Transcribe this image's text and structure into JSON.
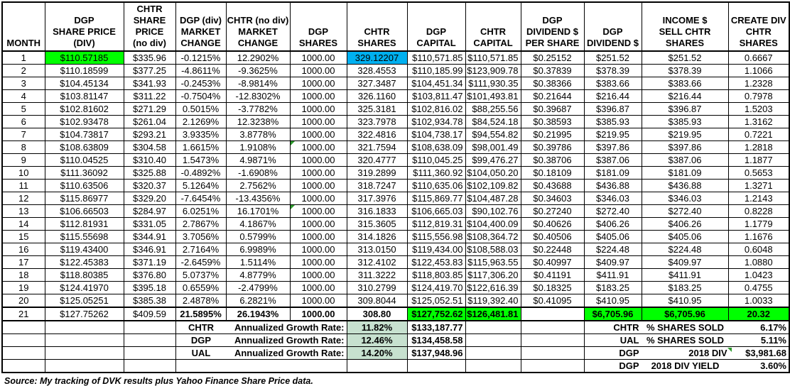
{
  "colors": {
    "highlight_green": "#00ff00",
    "highlight_blue": "#00b0f0",
    "rate_mint": "#c7e1cf",
    "note_flag_green": "#2d9b2d"
  },
  "table": {
    "columns": [
      {
        "id": "month",
        "lines": [
          "MONTH"
        ]
      },
      {
        "id": "dgp_price",
        "lines": [
          "DGP",
          "SHARE PRICE",
          "(DIV)"
        ]
      },
      {
        "id": "chtr_price",
        "lines": [
          "CHTR",
          "SHARE PRICE",
          "(no div)"
        ]
      },
      {
        "id": "dgp_chg",
        "lines": [
          "DGP (div)",
          "MARKET",
          "CHANGE"
        ]
      },
      {
        "id": "chtr_chg",
        "lines": [
          "CHTR (no div)",
          "MARKET",
          "CHANGE"
        ]
      },
      {
        "id": "dgp_shares",
        "lines": [
          "DGP",
          "SHARES"
        ]
      },
      {
        "id": "chtr_shares",
        "lines": [
          "CHTR",
          "SHARES"
        ]
      },
      {
        "id": "dgp_capital",
        "lines": [
          "DGP",
          "CAPITAL"
        ]
      },
      {
        "id": "chtr_capital",
        "lines": [
          "CHTR",
          "CAPITAL"
        ]
      },
      {
        "id": "div_per_share",
        "lines": [
          "DGP",
          "DIVIDEND $",
          "PER SHARE"
        ]
      },
      {
        "id": "dgp_dividend",
        "lines": [
          "DGP",
          "DIVIDEND $"
        ]
      },
      {
        "id": "income_sell",
        "lines": [
          "INCOME $",
          "SELL CHTR",
          "SHARES"
        ]
      },
      {
        "id": "create_div",
        "lines": [
          "CREATE DIV",
          "CHTR",
          "SHARES"
        ]
      }
    ],
    "rows": [
      {
        "month": "1",
        "dgp_price": "$110.57185",
        "chtr_price": "$335.96",
        "dgp_chg": "-0.1215%",
        "chtr_chg": "12.2902%",
        "dgp_shares": "1000.00",
        "chtr_shares": "329.12207",
        "dgp_capital": "$110,571.85",
        "chtr_capital": "$110,571.85",
        "div_per_share": "$0.25152",
        "dgp_dividend": "$251.52",
        "income_sell": "$251.52",
        "create_div": "0.6667"
      },
      {
        "month": "2",
        "dgp_price": "$110.18599",
        "chtr_price": "$377.25",
        "dgp_chg": "-4.8611%",
        "chtr_chg": "-9.3625%",
        "dgp_shares": "1000.00",
        "chtr_shares": "328.4553",
        "dgp_capital": "$110,185.99",
        "chtr_capital": "$123,909.78",
        "div_per_share": "$0.37839",
        "dgp_dividend": "$378.39",
        "income_sell": "$378.39",
        "create_div": "1.1066"
      },
      {
        "month": "3",
        "dgp_price": "$104.45134",
        "chtr_price": "$341.93",
        "dgp_chg": "-0.2453%",
        "chtr_chg": "-8.9814%",
        "dgp_shares": "1000.00",
        "chtr_shares": "327.3487",
        "dgp_capital": "$104,451.34",
        "chtr_capital": "$111,930.35",
        "div_per_share": "$0.38366",
        "dgp_dividend": "$383.66",
        "income_sell": "$383.66",
        "create_div": "1.2328"
      },
      {
        "month": "4",
        "dgp_price": "$103.81147",
        "chtr_price": "$311.22",
        "dgp_chg": "-0.7504%",
        "chtr_chg": "-12.8302%",
        "dgp_shares": "1000.00",
        "chtr_shares": "326.1160",
        "dgp_capital": "$103,811.47",
        "chtr_capital": "$101,493.81",
        "div_per_share": "$0.21644",
        "dgp_dividend": "$216.44",
        "income_sell": "$216.44",
        "create_div": "0.7978"
      },
      {
        "month": "5",
        "dgp_price": "$102.81602",
        "chtr_price": "$271.29",
        "dgp_chg": "0.5015%",
        "chtr_chg": "-3.7782%",
        "dgp_shares": "1000.00",
        "chtr_shares": "325.3181",
        "dgp_capital": "$102,816.02",
        "chtr_capital": "$88,255.56",
        "div_per_share": "$0.39687",
        "dgp_dividend": "$396.87",
        "income_sell": "$396.87",
        "create_div": "1.5203"
      },
      {
        "month": "6",
        "dgp_price": "$102.93478",
        "chtr_price": "$261.04",
        "dgp_chg": "2.1269%",
        "chtr_chg": "12.3238%",
        "dgp_shares": "1000.00",
        "chtr_shares": "323.7978",
        "dgp_capital": "$102,934.78",
        "chtr_capital": "$84,524.18",
        "div_per_share": "$0.38593",
        "dgp_dividend": "$385.93",
        "income_sell": "$385.93",
        "create_div": "1.3162"
      },
      {
        "month": "7",
        "dgp_price": "$104.73817",
        "chtr_price": "$293.21",
        "dgp_chg": "3.9335%",
        "chtr_chg": "3.8778%",
        "dgp_shares": "1000.00",
        "chtr_shares": "322.4816",
        "dgp_capital": "$104,738.17",
        "chtr_capital": "$94,554.82",
        "div_per_share": "$0.21995",
        "dgp_dividend": "$219.95",
        "income_sell": "$219.95",
        "create_div": "0.7221"
      },
      {
        "month": "8",
        "dgp_price": "$108.63809",
        "chtr_price": "$304.58",
        "dgp_chg": "1.6615%",
        "chtr_chg": "1.9108%",
        "dgp_shares": "1000.00",
        "chtr_shares": "321.7594",
        "dgp_capital": "$108,638.09",
        "chtr_capital": "$98,001.49",
        "div_per_share": "$0.39786",
        "dgp_dividend": "$397.86",
        "income_sell": "$397.86",
        "create_div": "1.2818"
      },
      {
        "month": "9",
        "dgp_price": "$110.04525",
        "chtr_price": "$310.40",
        "dgp_chg": "1.5473%",
        "chtr_chg": "4.9871%",
        "dgp_shares": "1000.00",
        "chtr_shares": "320.4777",
        "dgp_capital": "$110,045.25",
        "chtr_capital": "$99,476.27",
        "div_per_share": "$0.38706",
        "dgp_dividend": "$387.06",
        "income_sell": "$387.06",
        "create_div": "1.1877"
      },
      {
        "month": "10",
        "dgp_price": "$111.36092",
        "chtr_price": "$325.88",
        "dgp_chg": "-0.4892%",
        "chtr_chg": "-1.6908%",
        "dgp_shares": "1000.00",
        "chtr_shares": "319.2899",
        "dgp_capital": "$111,360.92",
        "chtr_capital": "$104,050.20",
        "div_per_share": "$0.18109",
        "dgp_dividend": "$181.09",
        "income_sell": "$181.09",
        "create_div": "0.5653"
      },
      {
        "month": "11",
        "dgp_price": "$110.63506",
        "chtr_price": "$320.37",
        "dgp_chg": "5.1264%",
        "chtr_chg": "2.7562%",
        "dgp_shares": "1000.00",
        "chtr_shares": "318.7247",
        "dgp_capital": "$110,635.06",
        "chtr_capital": "$102,109.82",
        "div_per_share": "$0.43688",
        "dgp_dividend": "$436.88",
        "income_sell": "$436.88",
        "create_div": "1.3271"
      },
      {
        "month": "12",
        "dgp_price": "$115.86977",
        "chtr_price": "$329.20",
        "dgp_chg": "-7.6454%",
        "chtr_chg": "-13.4356%",
        "dgp_shares": "1000.00",
        "chtr_shares": "317.3976",
        "dgp_capital": "$115,869.77",
        "chtr_capital": "$104,487.28",
        "div_per_share": "$0.34603",
        "dgp_dividend": "$346.03",
        "income_sell": "$346.03",
        "create_div": "1.2143"
      },
      {
        "month": "13",
        "dgp_price": "$106.66503",
        "chtr_price": "$284.97",
        "dgp_chg": "6.0251%",
        "chtr_chg": "16.1701%",
        "dgp_shares": "1000.00",
        "chtr_shares": "316.1833",
        "dgp_capital": "$106,665.03",
        "chtr_capital": "$90,102.76",
        "div_per_share": "$0.27240",
        "dgp_dividend": "$272.40",
        "income_sell": "$272.40",
        "create_div": "0.8228"
      },
      {
        "month": "14",
        "dgp_price": "$112.81931",
        "chtr_price": "$331.05",
        "dgp_chg": "2.7867%",
        "chtr_chg": "4.1867%",
        "dgp_shares": "1000.00",
        "chtr_shares": "315.3605",
        "dgp_capital": "$112,819.31",
        "chtr_capital": "$104,400.09",
        "div_per_share": "$0.40626",
        "dgp_dividend": "$406.26",
        "income_sell": "$406.26",
        "create_div": "1.1779"
      },
      {
        "month": "15",
        "dgp_price": "$115.55698",
        "chtr_price": "$344.91",
        "dgp_chg": "3.7056%",
        "chtr_chg": "0.5799%",
        "dgp_shares": "1000.00",
        "chtr_shares": "314.1826",
        "dgp_capital": "$115,556.98",
        "chtr_capital": "$108,364.72",
        "div_per_share": "$0.40506",
        "dgp_dividend": "$405.06",
        "income_sell": "$405.06",
        "create_div": "1.1676"
      },
      {
        "month": "16",
        "dgp_price": "$119.43400",
        "chtr_price": "$346.91",
        "dgp_chg": "2.7164%",
        "chtr_chg": "6.9989%",
        "dgp_shares": "1000.00",
        "chtr_shares": "313.0150",
        "dgp_capital": "$119,434.00",
        "chtr_capital": "$108,588.03",
        "div_per_share": "$0.22448",
        "dgp_dividend": "$224.48",
        "income_sell": "$224.48",
        "create_div": "0.6048"
      },
      {
        "month": "17",
        "dgp_price": "$122.45383",
        "chtr_price": "$371.19",
        "dgp_chg": "-2.6459%",
        "chtr_chg": "1.5114%",
        "dgp_shares": "1000.00",
        "chtr_shares": "312.4102",
        "dgp_capital": "$122,453.83",
        "chtr_capital": "$115,963.55",
        "div_per_share": "$0.40997",
        "dgp_dividend": "$409.97",
        "income_sell": "$409.97",
        "create_div": "1.0880"
      },
      {
        "month": "18",
        "dgp_price": "$118.80385",
        "chtr_price": "$376.80",
        "dgp_chg": "5.0737%",
        "chtr_chg": "4.8779%",
        "dgp_shares": "1000.00",
        "chtr_shares": "311.3222",
        "dgp_capital": "$118,803.85",
        "chtr_capital": "$117,306.20",
        "div_per_share": "$0.41191",
        "dgp_dividend": "$411.91",
        "income_sell": "$411.91",
        "create_div": "1.0423"
      },
      {
        "month": "19",
        "dgp_price": "$124.41970",
        "chtr_price": "$395.18",
        "dgp_chg": "0.6559%",
        "chtr_chg": "-2.4799%",
        "dgp_shares": "1000.00",
        "chtr_shares": "310.2799",
        "dgp_capital": "$124,419.70",
        "chtr_capital": "$122,616.39",
        "div_per_share": "$0.18325",
        "dgp_dividend": "$183.25",
        "income_sell": "$183.25",
        "create_div": "0.4755"
      },
      {
        "month": "20",
        "dgp_price": "$125.05251",
        "chtr_price": "$385.38",
        "dgp_chg": "2.4878%",
        "chtr_chg": "6.2821%",
        "dgp_shares": "1000.00",
        "chtr_shares": "309.8044",
        "dgp_capital": "$125,052.51",
        "chtr_capital": "$119,392.40",
        "div_per_share": "$0.41095",
        "dgp_dividend": "$410.95",
        "income_sell": "$410.95",
        "create_div": "1.0033"
      },
      {
        "month": "21",
        "dgp_price": "$127.75262",
        "chtr_price": "$409.59",
        "dgp_chg": "21.5895%",
        "chtr_chg": "26.1943%",
        "dgp_shares": "1000.00",
        "chtr_shares": "308.80",
        "dgp_capital": "$127,752.62",
        "chtr_capital": "$126,481.81",
        "div_per_share": "",
        "dgp_dividend": "$6,705.96",
        "income_sell": "$6,705.96",
        "create_div": "20.32"
      }
    ],
    "highlights": {
      "green_cells": [
        "r1.dgp_price",
        "r21.dgp_capital",
        "r21.chtr_capital",
        "r21.dgp_dividend",
        "r21.income_sell",
        "r21.create_div"
      ],
      "blue_cells": [
        "r1.chtr_shares"
      ],
      "note_flag_cells": [
        "r8.dgp_shares",
        "r13.dgp_shares"
      ]
    }
  },
  "summary_left": [
    {
      "ticker": "CHTR",
      "label": "Annualized Growth Rate:",
      "rate": "11.82%",
      "amount": "$133,187.77"
    },
    {
      "ticker": "DGP",
      "label": "Annualized Growth Rate:",
      "rate": "12.46%",
      "amount": "$134,458.58"
    },
    {
      "ticker": "UAL",
      "label": "Annualized Growth Rate:",
      "rate": "14.20%",
      "amount": "$137,948.96"
    },
    {
      "ticker": "",
      "label": "",
      "rate": "",
      "amount": ""
    }
  ],
  "summary_right": [
    {
      "ticker": "CHTR",
      "label": "% SHARES SOLD",
      "value": "6.17%",
      "note_flag": false
    },
    {
      "ticker": "UAL",
      "label": "% SHARES SOLD",
      "value": "5.11%",
      "note_flag": false
    },
    {
      "ticker": "DGP",
      "label": "2018 DIV",
      "value": "$3,981.68",
      "note_flag": true
    },
    {
      "ticker": "DGP",
      "label": "2018 DIV YIELD",
      "value": "3.60%",
      "note_flag": false
    }
  ],
  "footer": {
    "source_note": "Source: My tracking of DVK results plus Yahoo Finance Share Price data."
  }
}
